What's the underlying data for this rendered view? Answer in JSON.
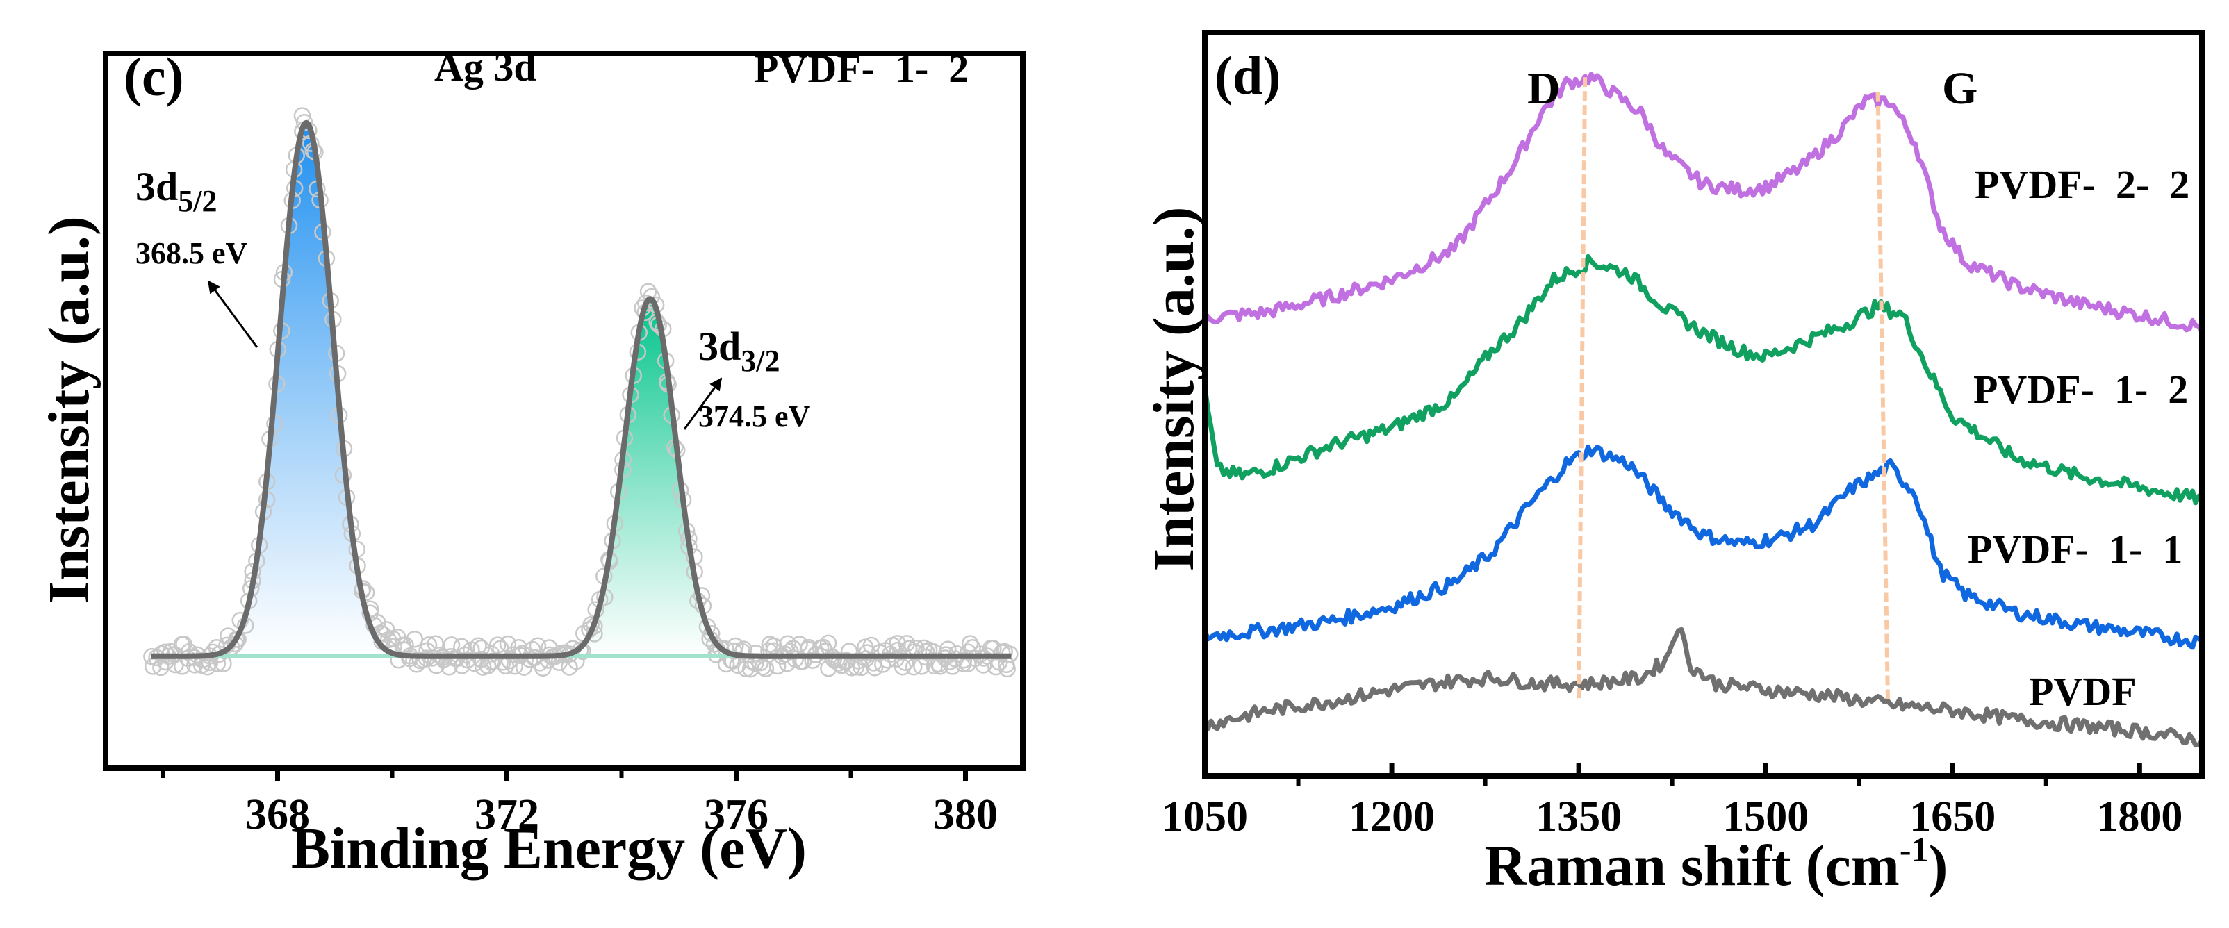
{
  "chart_data": [
    {
      "type": "scatter",
      "panel_label": "(c)",
      "title": "Ag 3d",
      "sample_label": "PVDF-  1-  2",
      "xlabel": "Binding Energy (eV)",
      "ylabel": "Instensity (a.u.)",
      "xlim": [
        365,
        381
      ],
      "ylim": [
        -0.21,
        1.13
      ],
      "xticks": [
        368,
        372,
        376,
        380
      ],
      "xtick_labels": [
        "368",
        "372",
        "376",
        "380"
      ],
      "minor_xticks": [
        366,
        370,
        374,
        378
      ],
      "grid": false,
      "peaks": [
        {
          "name": "3d",
          "sub": "5/2",
          "energy_label": "368.5 eV",
          "center": 368.5,
          "amplitude": 1.0,
          "fwhm": 1.1,
          "color": "#1e8ff0"
        },
        {
          "name": "3d",
          "sub": "3/2",
          "energy_label": "374.5 eV",
          "center": 374.5,
          "amplitude": 0.67,
          "fwhm": 1.05,
          "color": "#00c48a"
        }
      ],
      "fit_color": "#6b6b6b",
      "baseline_color": "#9fe3cf",
      "data_range": [
        365.8,
        380.8
      ]
    },
    {
      "type": "line",
      "panel_label": "(d)",
      "xlabel": "Raman shift (cm",
      "xlabel_sup": "-1",
      "xlabel_end": ")",
      "ylabel": "Intensity (a.u.)",
      "xlim": [
        1050,
        1850
      ],
      "ylim": [
        0,
        1
      ],
      "xticks": [
        1050,
        1200,
        1350,
        1500,
        1650,
        1800
      ],
      "xtick_labels": [
        "1050",
        "1200",
        "1350",
        "1500",
        "1650",
        "1800"
      ],
      "minor_xticks": [
        1125,
        1275,
        1425,
        1575,
        1725
      ],
      "grid": false,
      "band_labels": {
        "D": "D",
        "G": "G"
      },
      "band_lines": [
        {
          "name": "D",
          "top": [
            1355,
            0.94
          ],
          "bottom": [
            1350,
            0.1
          ]
        },
        {
          "name": "G",
          "top": [
            1590,
            0.92
          ],
          "bottom": [
            1598,
            0.1
          ]
        }
      ],
      "band_line_color": "#f9c9a6",
      "series": [
        {
          "name": "PVDF-  2-  2",
          "color": "#c070e0",
          "x": [
            1050,
            1100,
            1150,
            1200,
            1250,
            1280,
            1300,
            1320,
            1340,
            1360,
            1380,
            1400,
            1420,
            1450,
            1480,
            1500,
            1530,
            1560,
            1580,
            1600,
            1620,
            1640,
            1660,
            1700,
            1750,
            1800,
            1850
          ],
          "y": [
            0.616,
            0.624,
            0.644,
            0.668,
            0.708,
            0.78,
            0.828,
            0.892,
            0.932,
            0.94,
            0.916,
            0.892,
            0.836,
            0.796,
            0.788,
            0.792,
            0.82,
            0.868,
            0.908,
            0.908,
            0.852,
            0.74,
            0.692,
            0.66,
            0.636,
            0.62,
            0.604
          ]
        },
        {
          "name": "PVDF-  1-  2",
          "color": "#10a060",
          "x": [
            1050,
            1060,
            1080,
            1100,
            1150,
            1200,
            1250,
            1280,
            1300,
            1330,
            1360,
            1390,
            1420,
            1450,
            1480,
            1500,
            1530,
            1560,
            1590,
            1610,
            1630,
            1650,
            1700,
            1750,
            1800,
            1850
          ],
          "y": [
            0.516,
            0.412,
            0.404,
            0.412,
            0.444,
            0.468,
            0.508,
            0.572,
            0.604,
            0.668,
            0.692,
            0.676,
            0.628,
            0.596,
            0.572,
            0.564,
            0.584,
            0.604,
            0.632,
            0.62,
            0.548,
            0.484,
            0.428,
            0.404,
            0.388,
            0.372
          ]
        },
        {
          "name": "PVDF-  1-  1",
          "color": "#1068e0",
          "x": [
            1050,
            1100,
            1150,
            1200,
            1250,
            1280,
            1310,
            1340,
            1360,
            1390,
            1420,
            1450,
            1480,
            1510,
            1540,
            1570,
            1600,
            1620,
            1640,
            1660,
            1700,
            1750,
            1800,
            1850
          ],
          "y": [
            0.188,
            0.196,
            0.208,
            0.228,
            0.26,
            0.3,
            0.364,
            0.42,
            0.44,
            0.42,
            0.364,
            0.324,
            0.312,
            0.32,
            0.34,
            0.388,
            0.416,
            0.38,
            0.276,
            0.244,
            0.22,
            0.204,
            0.192,
            0.18
          ]
        },
        {
          "name": "PVDF",
          "color": "#707070",
          "x": [
            1050,
            1100,
            1150,
            1200,
            1250,
            1280,
            1320,
            1360,
            1400,
            1420,
            1430,
            1440,
            1460,
            1500,
            1550,
            1600,
            1650,
            1700,
            1750,
            1800,
            1850
          ],
          "y": [
            0.068,
            0.088,
            0.1,
            0.116,
            0.128,
            0.132,
            0.124,
            0.124,
            0.132,
            0.156,
            0.204,
            0.148,
            0.124,
            0.116,
            0.108,
            0.096,
            0.088,
            0.076,
            0.068,
            0.06,
            0.048
          ]
        }
      ]
    }
  ]
}
